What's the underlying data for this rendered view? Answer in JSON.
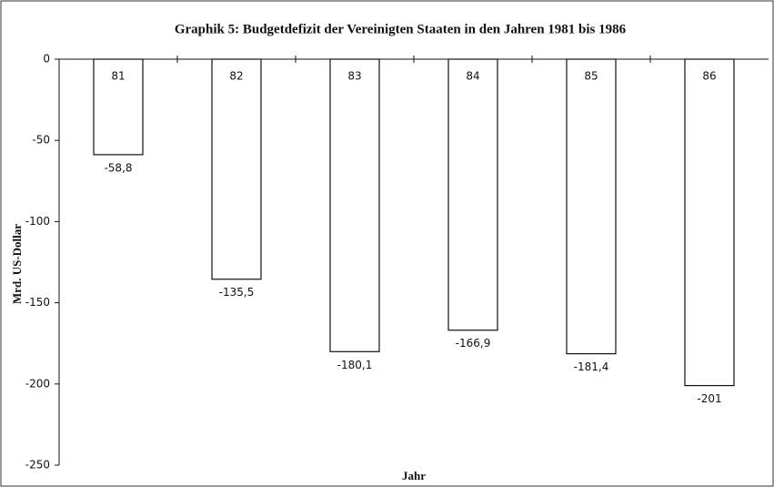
{
  "chart_data": {
    "type": "bar",
    "title": "Graphik 5: Budgetdefizit der Vereinigten Staaten in den Jahren 1981 bis 1986",
    "y_label": "Mrd. US-Dollar",
    "x_label": "Jahr",
    "categories": [
      "81",
      "82",
      "83",
      "84",
      "85",
      "86"
    ],
    "values": [
      -58.8,
      -135.5,
      -180.1,
      -166.9,
      -181.4,
      -201
    ],
    "value_labels": [
      "-58,8",
      "-135,5",
      "-180,1",
      "-166,9",
      "-181,4",
      "-201"
    ],
    "color": "#ffffff",
    "ylim": [
      -250,
      0
    ],
    "yticks": [
      0,
      -50,
      -100,
      -150,
      -200,
      -250
    ],
    "grid": false
  }
}
